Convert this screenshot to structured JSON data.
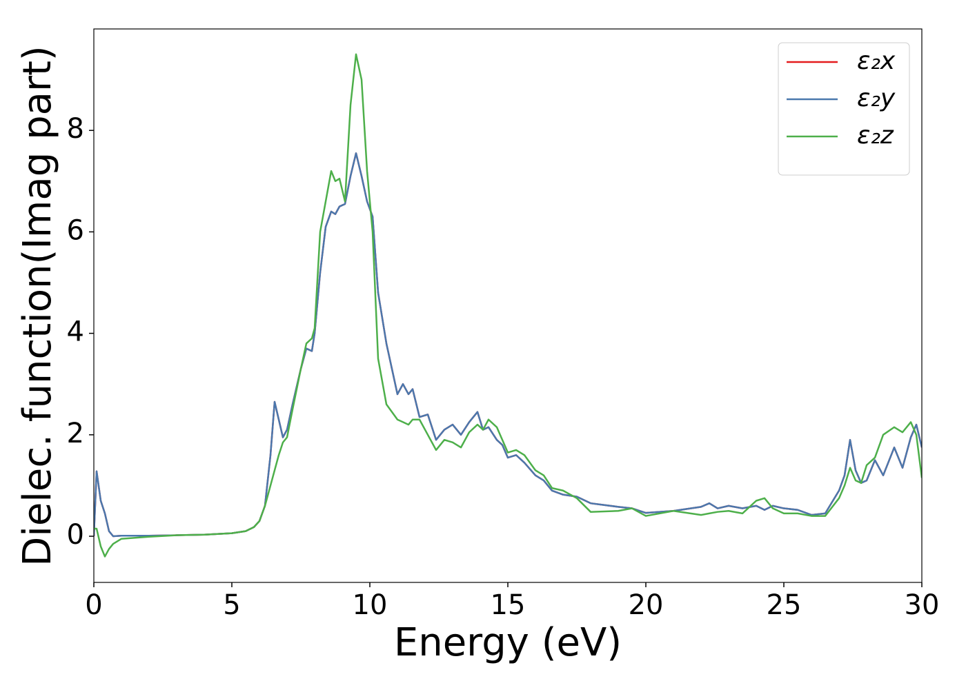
{
  "chart_data": {
    "type": "line",
    "xlabel": "Energy (eV)",
    "ylabel": "Dielec. function(Imag part)",
    "x": [
      0,
      0.1,
      0.25,
      0.4,
      0.55,
      0.7,
      1,
      2,
      3,
      4,
      5,
      5.5,
      5.8,
      6,
      6.2,
      6.4,
      6.55,
      6.7,
      6.85,
      7,
      7.2,
      7.5,
      7.7,
      7.9,
      8,
      8.2,
      8.4,
      8.6,
      8.75,
      8.9,
      9.1,
      9.3,
      9.5,
      9.7,
      9.9,
      10.1,
      10.3,
      10.6,
      11,
      11.2,
      11.4,
      11.55,
      11.8,
      12.1,
      12.4,
      12.7,
      13,
      13.3,
      13.6,
      13.9,
      14.1,
      14.3,
      14.6,
      14.8,
      15,
      15.3,
      15.6,
      16,
      16.3,
      16.6,
      17,
      17.5,
      18,
      19,
      19.5,
      20,
      21,
      22,
      22.3,
      22.6,
      23,
      23.5,
      24,
      24.3,
      24.6,
      25,
      25.5,
      26,
      26.5,
      27,
      27.2,
      27.4,
      27.6,
      27.8,
      28,
      28.3,
      28.6,
      29,
      29.3,
      29.6,
      29.8,
      30
    ],
    "series": [
      {
        "name": "ε₂x",
        "color": "#e41a1c",
        "values": [
          0,
          1.28,
          0.7,
          0.45,
          0.1,
          0,
          0.01,
          0.01,
          0.02,
          0.03,
          0.06,
          0.1,
          0.18,
          0.3,
          0.6,
          1.6,
          2.65,
          2.3,
          1.95,
          2.1,
          2.6,
          3.3,
          3.7,
          3.65,
          4.0,
          5.2,
          6.1,
          6.4,
          6.35,
          6.5,
          6.55,
          7.1,
          7.55,
          7.1,
          6.6,
          6.3,
          4.8,
          3.8,
          2.8,
          3.0,
          2.8,
          2.9,
          2.35,
          2.4,
          1.9,
          2.1,
          2.2,
          2.0,
          2.25,
          2.45,
          2.1,
          2.15,
          1.9,
          1.8,
          1.55,
          1.6,
          1.45,
          1.2,
          1.1,
          0.9,
          0.82,
          0.78,
          0.65,
          0.58,
          0.55,
          0.46,
          0.5,
          0.58,
          0.65,
          0.55,
          0.6,
          0.55,
          0.6,
          0.52,
          0.6,
          0.55,
          0.52,
          0.42,
          0.45,
          0.9,
          1.2,
          1.9,
          1.3,
          1.05,
          1.1,
          1.5,
          1.2,
          1.75,
          1.35,
          1.95,
          2.2,
          1.75
        ]
      },
      {
        "name": "ε₂y",
        "color": "#4a78ad",
        "values": [
          0,
          1.28,
          0.7,
          0.45,
          0.1,
          0,
          0.01,
          0.01,
          0.02,
          0.03,
          0.06,
          0.1,
          0.18,
          0.3,
          0.6,
          1.6,
          2.65,
          2.3,
          1.95,
          2.1,
          2.6,
          3.3,
          3.7,
          3.65,
          4.0,
          5.2,
          6.1,
          6.4,
          6.35,
          6.5,
          6.55,
          7.1,
          7.55,
          7.1,
          6.6,
          6.3,
          4.8,
          3.8,
          2.8,
          3.0,
          2.8,
          2.9,
          2.35,
          2.4,
          1.9,
          2.1,
          2.2,
          2.0,
          2.25,
          2.45,
          2.1,
          2.15,
          1.9,
          1.8,
          1.55,
          1.6,
          1.45,
          1.2,
          1.1,
          0.9,
          0.82,
          0.78,
          0.65,
          0.58,
          0.55,
          0.46,
          0.5,
          0.58,
          0.65,
          0.55,
          0.6,
          0.55,
          0.6,
          0.52,
          0.6,
          0.55,
          0.52,
          0.42,
          0.45,
          0.9,
          1.2,
          1.9,
          1.3,
          1.05,
          1.1,
          1.5,
          1.2,
          1.75,
          1.35,
          1.95,
          2.2,
          1.75
        ]
      },
      {
        "name": "ε₂z",
        "color": "#4daf4a",
        "values": [
          0.15,
          0.15,
          -0.2,
          -0.4,
          -0.25,
          -0.15,
          -0.05,
          -0.01,
          0.02,
          0.03,
          0.06,
          0.1,
          0.18,
          0.3,
          0.6,
          1.0,
          1.3,
          1.6,
          1.85,
          1.95,
          2.5,
          3.3,
          3.8,
          3.9,
          4.1,
          6.0,
          6.6,
          7.2,
          7.0,
          7.05,
          6.6,
          8.5,
          9.5,
          9.0,
          7.2,
          6.0,
          3.5,
          2.6,
          2.3,
          2.25,
          2.2,
          2.3,
          2.3,
          2.0,
          1.7,
          1.9,
          1.85,
          1.75,
          2.05,
          2.2,
          2.1,
          2.3,
          2.15,
          1.9,
          1.65,
          1.7,
          1.6,
          1.3,
          1.2,
          0.95,
          0.9,
          0.75,
          0.48,
          0.5,
          0.55,
          0.4,
          0.5,
          0.42,
          0.45,
          0.48,
          0.5,
          0.45,
          0.7,
          0.75,
          0.55,
          0.45,
          0.45,
          0.4,
          0.4,
          0.75,
          1.0,
          1.35,
          1.1,
          1.05,
          1.4,
          1.55,
          2.0,
          2.15,
          2.05,
          2.25,
          2.0,
          1.15
        ]
      }
    ],
    "xlim": [
      0,
      30
    ],
    "ylim": [
      -0.91,
      10.0
    ],
    "xticks": [
      0,
      5,
      10,
      15,
      20,
      25,
      30
    ],
    "yticks": [
      0,
      2,
      4,
      6,
      8
    ],
    "legend": "upper right",
    "grid": false
  }
}
